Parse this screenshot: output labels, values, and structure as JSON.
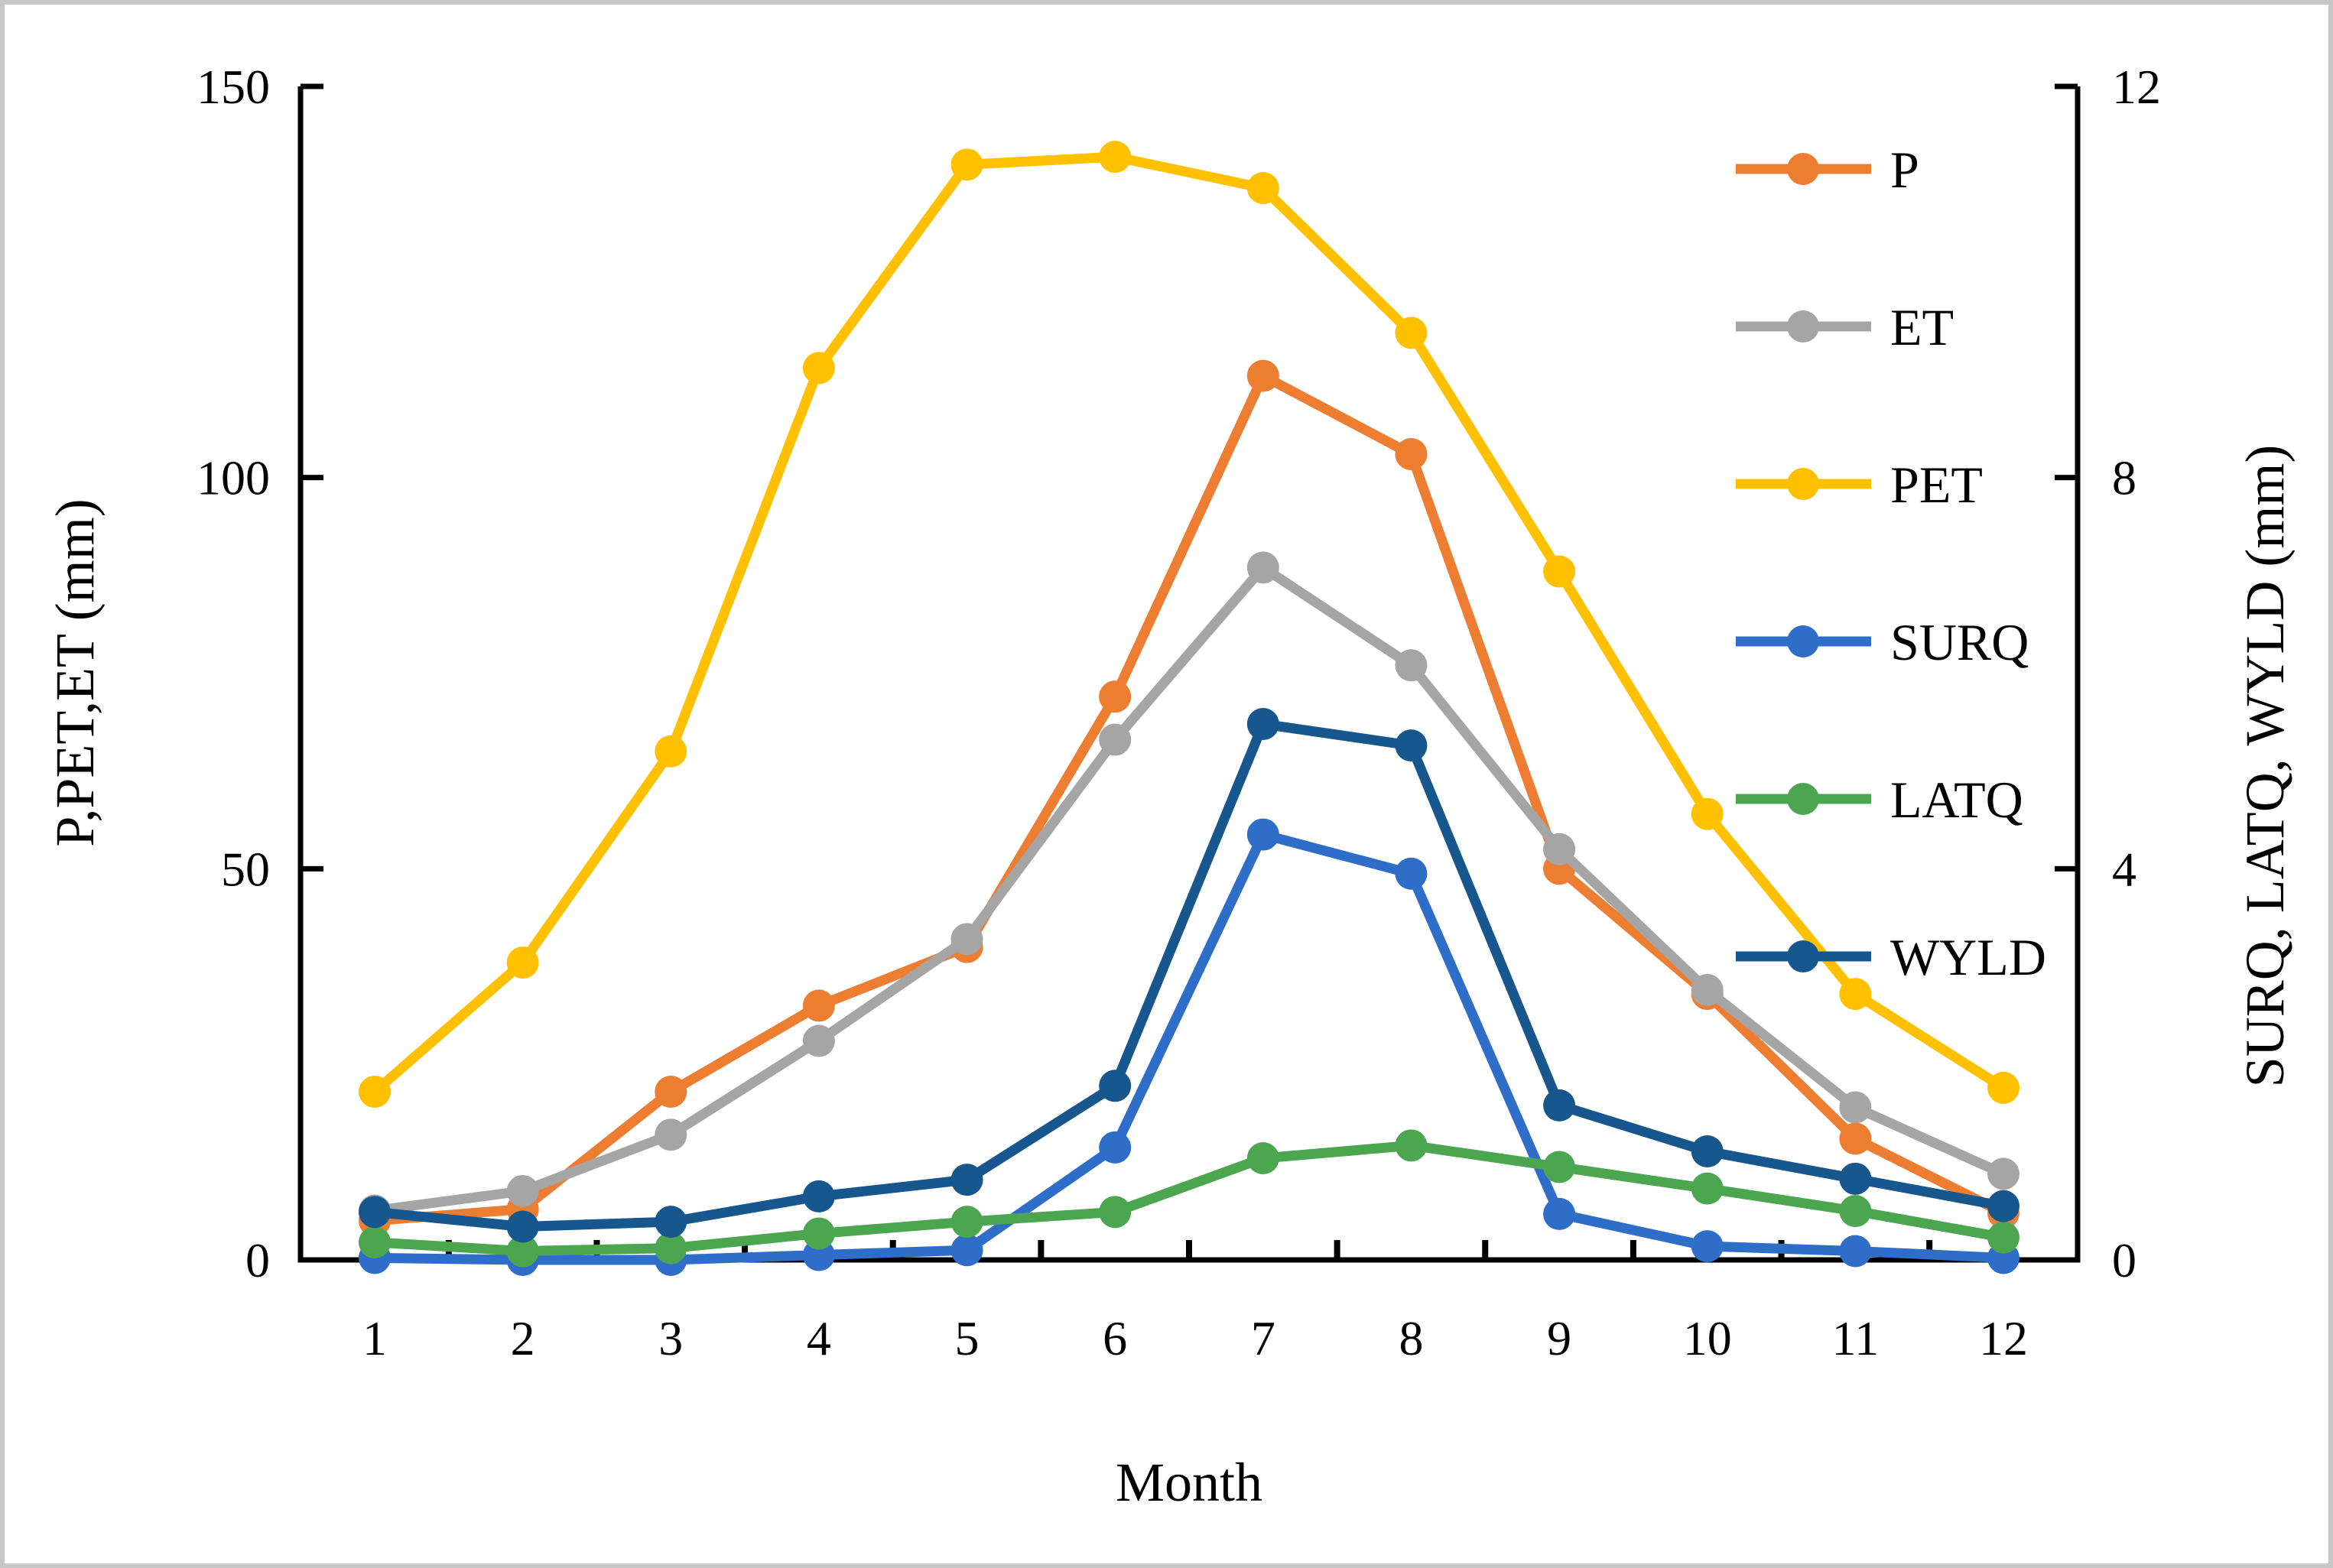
{
  "chart_data": {
    "type": "line",
    "title": "",
    "xlabel": "Month",
    "ylabel_left": "P,PET,ET (mm)",
    "ylabel_right": "SURQ, LATQ, WYLD (mm)",
    "x": [
      1,
      2,
      3,
      4,
      5,
      6,
      7,
      8,
      9,
      10,
      11,
      12
    ],
    "x_tick_labels": [
      "1",
      "2",
      "3",
      "4",
      "5",
      "6",
      "7",
      "8",
      "9",
      "10",
      "11",
      "12"
    ],
    "left_axis": {
      "ticks": [
        0,
        50,
        100,
        150
      ],
      "tick_labels": [
        "0",
        "50",
        "100",
        "150"
      ],
      "range": [
        0,
        150
      ]
    },
    "right_axis": {
      "ticks": [
        0,
        4,
        8,
        12
      ],
      "tick_labels": [
        "0",
        "4",
        "8",
        "12"
      ],
      "range": [
        0,
        12
      ]
    },
    "grid": "off",
    "legend_position": "top-right",
    "series": [
      {
        "name": "P",
        "axis": "left",
        "color": "#ED7D31",
        "values": [
          5,
          6.5,
          21.5,
          32.5,
          40,
          72,
          113,
          103,
          50,
          34,
          15.5,
          6
        ]
      },
      {
        "name": "ET",
        "axis": "left",
        "color": "#A5A5A5",
        "values": [
          6.3,
          8.8,
          16,
          28,
          41,
          66.5,
          88.5,
          76,
          52.5,
          34.5,
          19.5,
          11
        ]
      },
      {
        "name": "PET",
        "axis": "left",
        "color": "#FFC000",
        "values": [
          21.5,
          38,
          65,
          114,
          140,
          141,
          137,
          118.5,
          88,
          57,
          34,
          22
        ]
      },
      {
        "name": "SURQ",
        "axis": "right",
        "color": "#2E6EC8",
        "values": [
          0.02,
          0,
          0,
          0.05,
          0.1,
          1.15,
          4.35,
          3.95,
          0.47,
          0.14,
          0.09,
          0.02
        ]
      },
      {
        "name": "LATQ",
        "axis": "right",
        "color": "#4CA64F",
        "values": [
          0.18,
          0.09,
          0.12,
          0.27,
          0.39,
          0.49,
          1.04,
          1.17,
          0.95,
          0.73,
          0.5,
          0.23
        ]
      },
      {
        "name": "WYLD",
        "axis": "right",
        "color": "#17578D",
        "values": [
          0.49,
          0.34,
          0.39,
          0.65,
          0.82,
          1.78,
          5.48,
          5.26,
          1.58,
          1.11,
          0.83,
          0.55
        ]
      }
    ]
  }
}
